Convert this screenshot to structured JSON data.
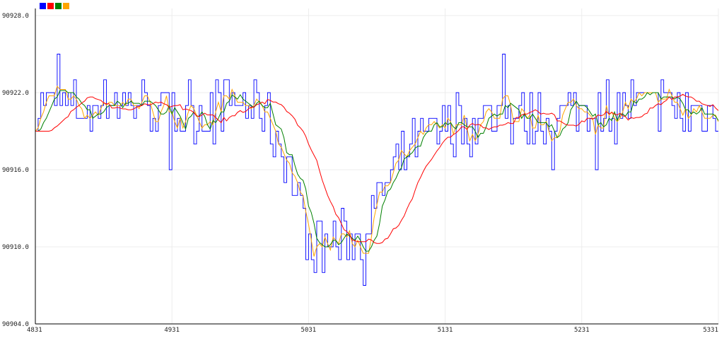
{
  "colors": {
    "background": "#ffffff",
    "grid": "#ececec",
    "axis": "#000000",
    "series": [
      "#0000ff",
      "#ff0000",
      "#008000",
      "#ffa500"
    ]
  },
  "chart_data": {
    "type": "line",
    "title": "",
    "xlabel": "",
    "ylabel": "",
    "grid": true,
    "legend_placement": "top-left",
    "xlim": [
      4831,
      5331
    ],
    "ylim": [
      90904.0,
      90928.0
    ],
    "x_ticks": [
      "4831",
      "4931",
      "5031",
      "5131",
      "5231",
      "5331"
    ],
    "y_ticks": [
      "90928.0",
      "90922.0",
      "90916.0",
      "90910.0",
      "90904.0"
    ],
    "x_tick_values": [
      4831,
      4931,
      5031,
      5131,
      5231,
      5331
    ],
    "y_tick_values": [
      90928.0,
      90922.0,
      90916.0,
      90910.0,
      90904.0
    ],
    "anchors": [
      [
        4831,
        90921.4
      ],
      [
        4861,
        90920.8
      ],
      [
        4881,
        90921.5
      ],
      [
        4901,
        90921.3
      ],
      [
        4921,
        90920.8
      ],
      [
        4941,
        90919.7
      ],
      [
        4961,
        90920.9
      ],
      [
        4981,
        90921.2
      ],
      [
        4991,
        90920.6
      ],
      [
        4996,
        90921.0
      ],
      [
        5011,
        90917.5
      ],
      [
        5016,
        90916.4
      ],
      [
        5024,
        90913.0
      ],
      [
        5031,
        90910.5
      ],
      [
        5041,
        90909.9
      ],
      [
        5046,
        90910.5
      ],
      [
        5051,
        90910.6
      ],
      [
        5061,
        90910.6
      ],
      [
        5071,
        90911.0
      ],
      [
        5081,
        90913.5
      ],
      [
        5091,
        90915.5
      ],
      [
        5101,
        90917.0
      ],
      [
        5111,
        90918.0
      ],
      [
        5121,
        90918.6
      ],
      [
        5131,
        90919.3
      ],
      [
        5141,
        90918.9
      ],
      [
        5151,
        90919.3
      ],
      [
        5171,
        90920.1
      ],
      [
        5191,
        90919.8
      ],
      [
        5211,
        90920.3
      ],
      [
        5231,
        90920.6
      ],
      [
        5251,
        90921.2
      ],
      [
        5271,
        90921.1
      ],
      [
        5291,
        90920.5
      ],
      [
        5311,
        90920.5
      ],
      [
        5331,
        90920.9
      ]
    ],
    "series": [
      {
        "color": "#0000ff",
        "kind": "raw",
        "noise": 2.1,
        "seed": 7
      },
      {
        "color": "#ff0000",
        "kind": "smooth",
        "window": 14,
        "lag": 5
      },
      {
        "color": "#008000",
        "kind": "smooth",
        "window": 5,
        "lag": 1
      },
      {
        "color": "#ffa500",
        "kind": "smooth",
        "window": 3,
        "lag": 0
      }
    ]
  }
}
